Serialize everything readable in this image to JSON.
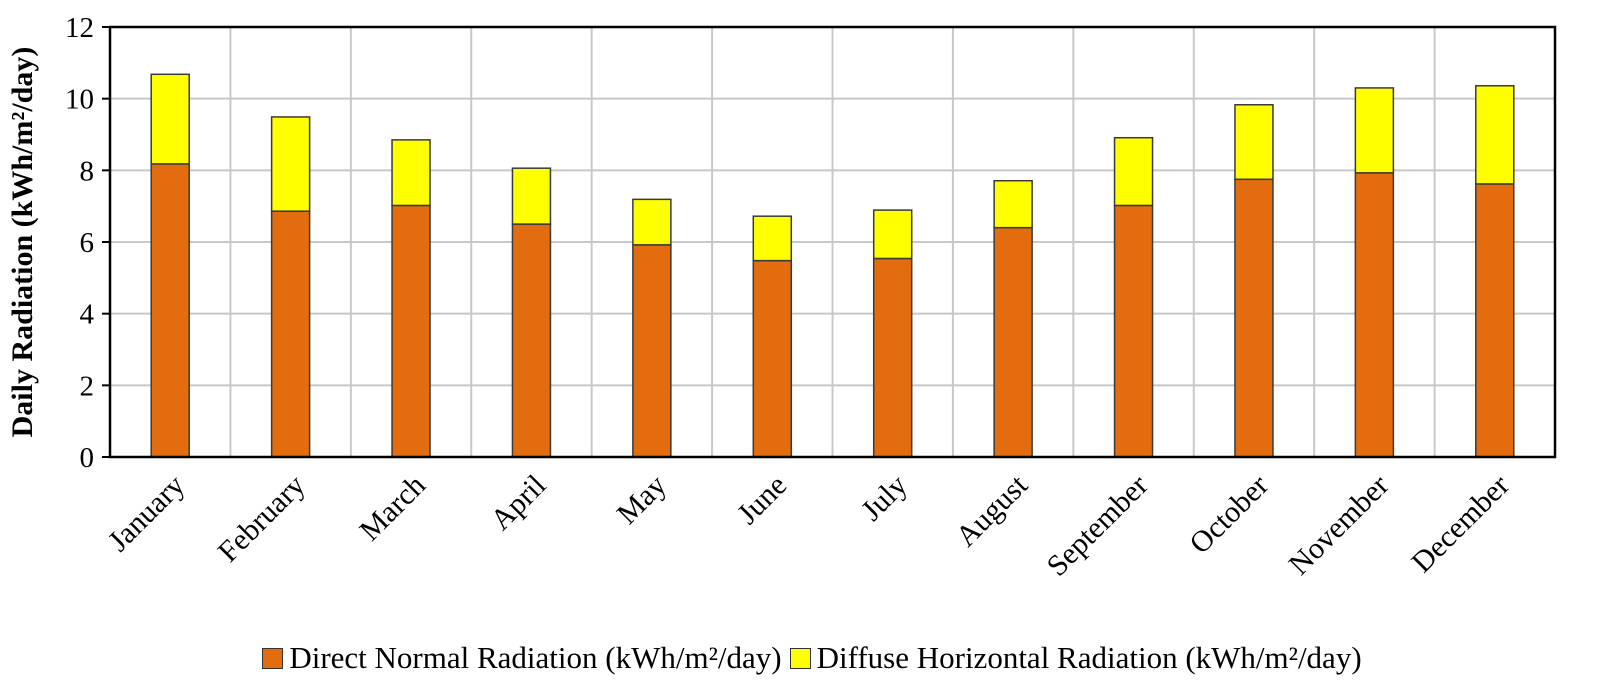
{
  "chart_data": {
    "type": "bar",
    "stacked": true,
    "categories": [
      "January",
      "February",
      "March",
      "April",
      "May",
      "June",
      "July",
      "August",
      "September",
      "October",
      "November",
      "December"
    ],
    "series": [
      {
        "name": "Direct Normal Radiation (kWh/m²/day)",
        "color": "#E36C0E",
        "values": [
          8.18,
          6.86,
          7.02,
          6.5,
          5.92,
          5.48,
          5.54,
          6.4,
          7.02,
          7.75,
          7.93,
          7.62
        ]
      },
      {
        "name": "Diffuse Horizontal Radiation (kWh/m²/day)",
        "color": "#FFFF00",
        "values": [
          2.5,
          2.63,
          1.83,
          1.56,
          1.27,
          1.24,
          1.35,
          1.31,
          1.89,
          2.08,
          2.37,
          2.74
        ]
      }
    ],
    "title": "",
    "xlabel": "",
    "ylabel": "Daily Radiation (kWh/m²/day)",
    "ylim": [
      0,
      12
    ],
    "yticks": [
      "0",
      "2",
      "4",
      "6",
      "8",
      "10",
      "12"
    ],
    "grid": true,
    "legend": "bottom"
  }
}
